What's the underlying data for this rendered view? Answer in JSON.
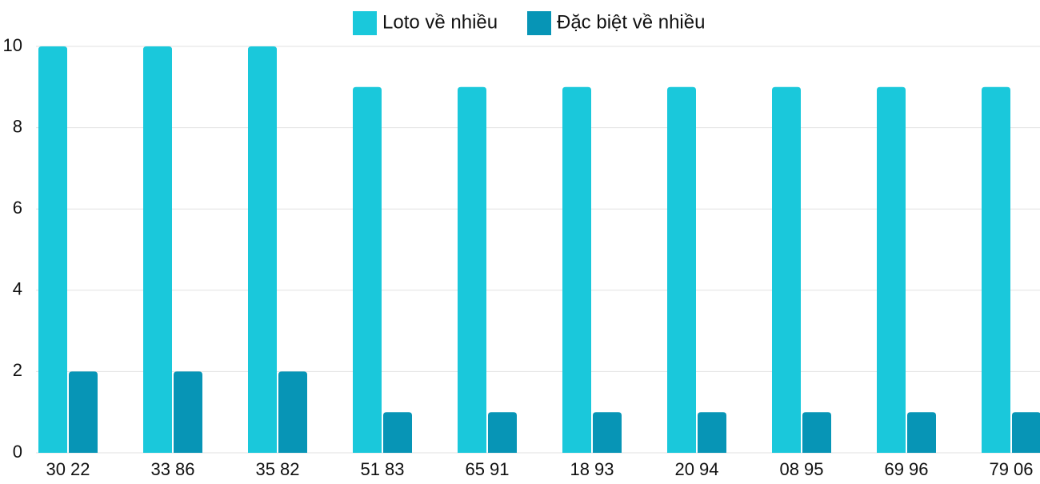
{
  "chart_data": {
    "type": "bar",
    "categories": [
      "30 22",
      "33 86",
      "35 82",
      "51 83",
      "65 91",
      "18 93",
      "20 94",
      "08 95",
      "69 96",
      "79 06"
    ],
    "series": [
      {
        "name": "Loto về nhiều",
        "color": "#1ac8db",
        "values": [
          10,
          10,
          10,
          9,
          9,
          9,
          9,
          9,
          9,
          9
        ]
      },
      {
        "name": "Đặc biệt về nhiều",
        "color": "#0795b6",
        "values": [
          2,
          2,
          2,
          1,
          1,
          1,
          1,
          1,
          1,
          1
        ]
      }
    ],
    "ylim": [
      0,
      10
    ],
    "yticks": [
      0,
      2,
      4,
      6,
      8,
      10
    ],
    "grid": true,
    "legend": "top"
  }
}
